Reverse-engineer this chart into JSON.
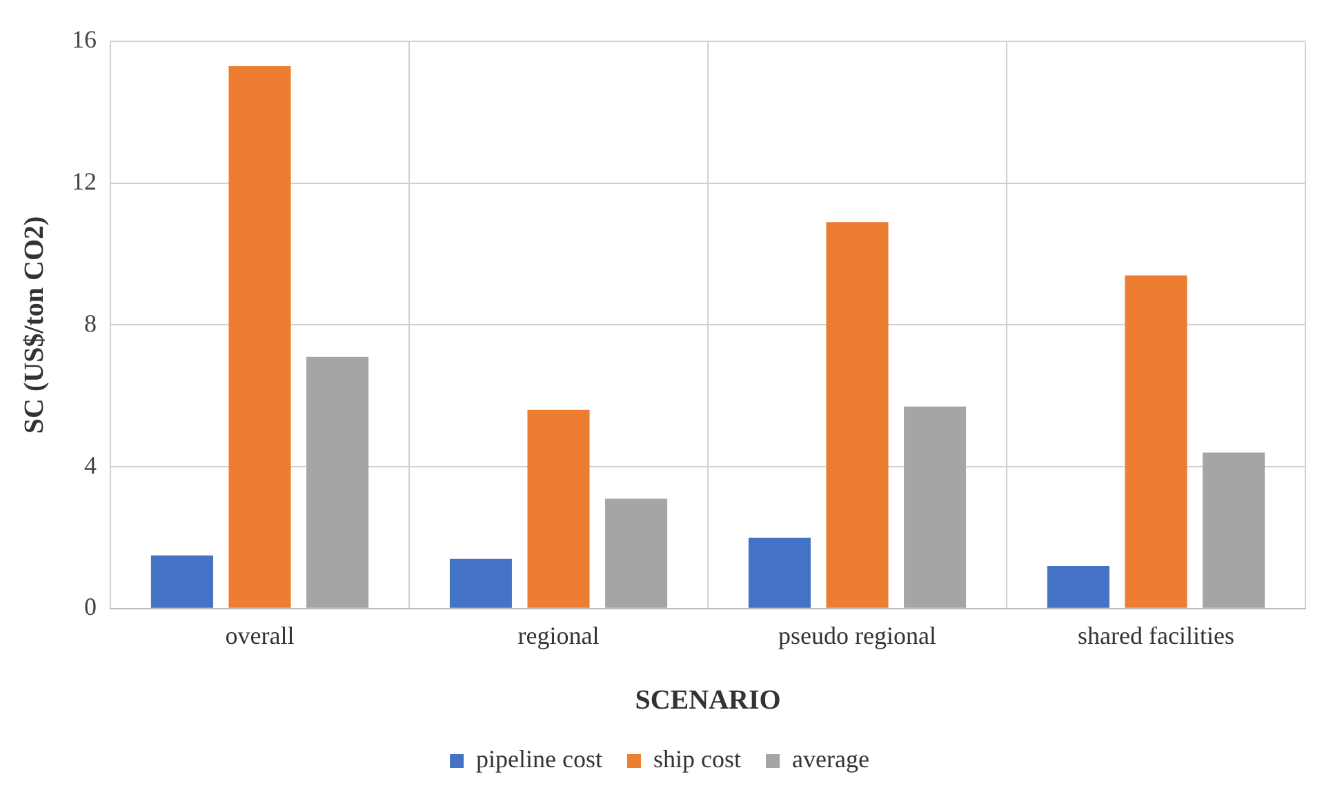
{
  "chart_data": {
    "type": "bar",
    "xlabel": "SCENARIO",
    "ylabel": "SC (US$/ton CO2)",
    "categories": [
      "overall",
      "regional",
      "pseudo regional",
      "shared facilities"
    ],
    "series": [
      {
        "name": "pipeline cost",
        "color": "#4472c4",
        "values": [
          1.5,
          1.4,
          2.0,
          1.2
        ]
      },
      {
        "name": "ship cost",
        "color": "#ed7d31",
        "values": [
          15.3,
          5.6,
          10.9,
          9.4
        ]
      },
      {
        "name": "average",
        "color": "#a5a5a5",
        "values": [
          7.1,
          3.1,
          5.7,
          4.4
        ]
      }
    ],
    "ylim": [
      0,
      16
    ],
    "yticks": [
      0,
      4,
      8,
      12,
      16
    ],
    "grid": true,
    "legend": "bottom"
  }
}
